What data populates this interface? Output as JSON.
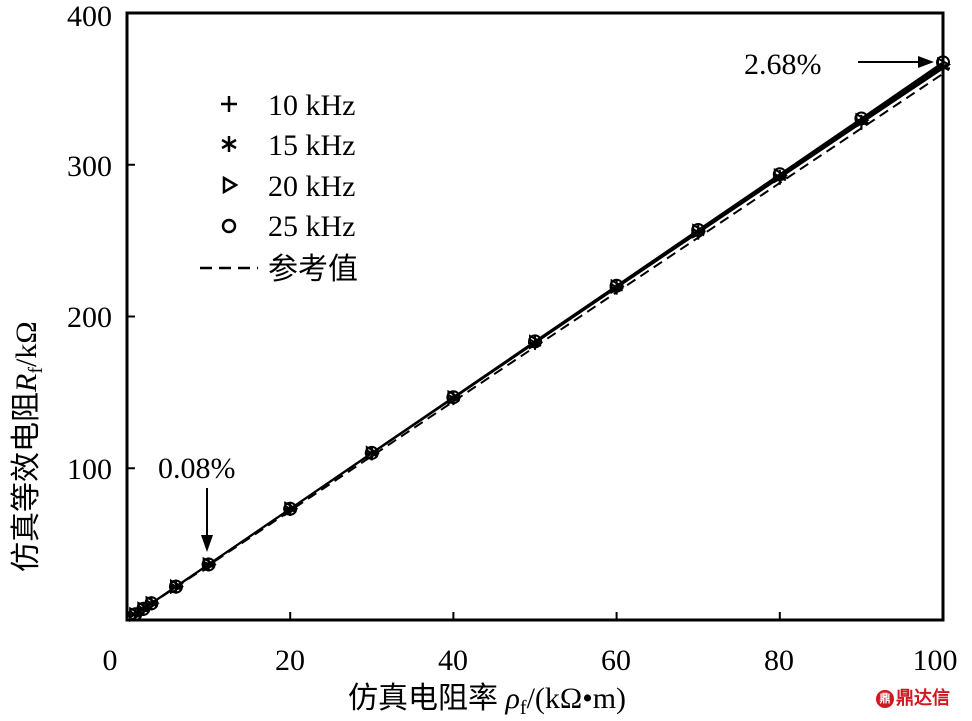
{
  "chart_data": {
    "type": "line",
    "title": "",
    "xlabel": "仿真电阻率 ρf/(kΩ·m)",
    "ylabel": "仿真等效电阻 Rf/kΩ",
    "xlim": [
      0,
      100
    ],
    "ylim": [
      0,
      400
    ],
    "xticks": [
      0,
      20,
      40,
      60,
      80,
      100
    ],
    "yticks": [
      100,
      200,
      300,
      400
    ],
    "grid": false,
    "legend_position": "upper left",
    "x": [
      1,
      2,
      3,
      6,
      10,
      20,
      30,
      40,
      50,
      60,
      70,
      80,
      90,
      100
    ],
    "series": [
      {
        "name": "10 kHz",
        "marker": "+",
        "values": [
          3.7,
          7.3,
          11.0,
          22.0,
          36.6,
          73.2,
          109.8,
          146.2,
          182.6,
          219.0,
          255.2,
          291.4,
          327.6,
          363.5
        ]
      },
      {
        "name": "15 kHz",
        "marker": "*",
        "values": [
          3.7,
          7.3,
          11.0,
          22.0,
          36.6,
          73.2,
          109.9,
          146.4,
          182.9,
          219.3,
          255.7,
          292.0,
          328.3,
          364.6
        ]
      },
      {
        "name": "20 kHz",
        "marker": "triangle-right",
        "values": [
          3.7,
          7.3,
          11.0,
          22.0,
          36.6,
          73.3,
          110.0,
          146.6,
          183.2,
          219.8,
          256.3,
          292.8,
          329.3,
          366.0
        ]
      },
      {
        "name": "25 kHz",
        "marker": "o",
        "values": [
          3.7,
          7.3,
          11.0,
          22.0,
          36.6,
          73.3,
          110.1,
          146.8,
          183.6,
          220.3,
          257.0,
          293.7,
          330.5,
          367.5
        ]
      },
      {
        "name": "参考值",
        "marker": "dashed-line",
        "values": [
          3.6,
          7.2,
          10.8,
          21.6,
          36.0,
          72.0,
          108.0,
          144.0,
          180.0,
          216.0,
          252.0,
          288.0,
          324.0,
          360.0
        ]
      }
    ],
    "annotations": [
      {
        "text": "0.08%",
        "x": 10,
        "y": 36.6,
        "arrow": "down"
      },
      {
        "text": "2.68%",
        "x": 100,
        "y": 367.5,
        "arrow": "right"
      }
    ]
  },
  "labels": {
    "ylabel_cn": "仿真等效电阻",
    "ylabel_sym": "R",
    "ylabel_sub": "f",
    "ylabel_unit": "/kΩ",
    "xlabel_cn": "仿真电阻率 ",
    "xlabel_sym": "ρ",
    "xlabel_sub": "f",
    "xlabel_unit": "/(kΩ•m)",
    "xtick_labels": [
      "0",
      "20",
      "40",
      "60",
      "80",
      "100"
    ],
    "ytick_labels": [
      "100",
      "200",
      "300",
      "400"
    ],
    "legend": [
      "10 kHz",
      "15 kHz",
      "20 kHz",
      "25 kHz",
      "参考值"
    ],
    "annot_low": "0.08%",
    "annot_high": "2.68%",
    "watermark": "鼎达信",
    "watermark_logo": "鼎"
  }
}
